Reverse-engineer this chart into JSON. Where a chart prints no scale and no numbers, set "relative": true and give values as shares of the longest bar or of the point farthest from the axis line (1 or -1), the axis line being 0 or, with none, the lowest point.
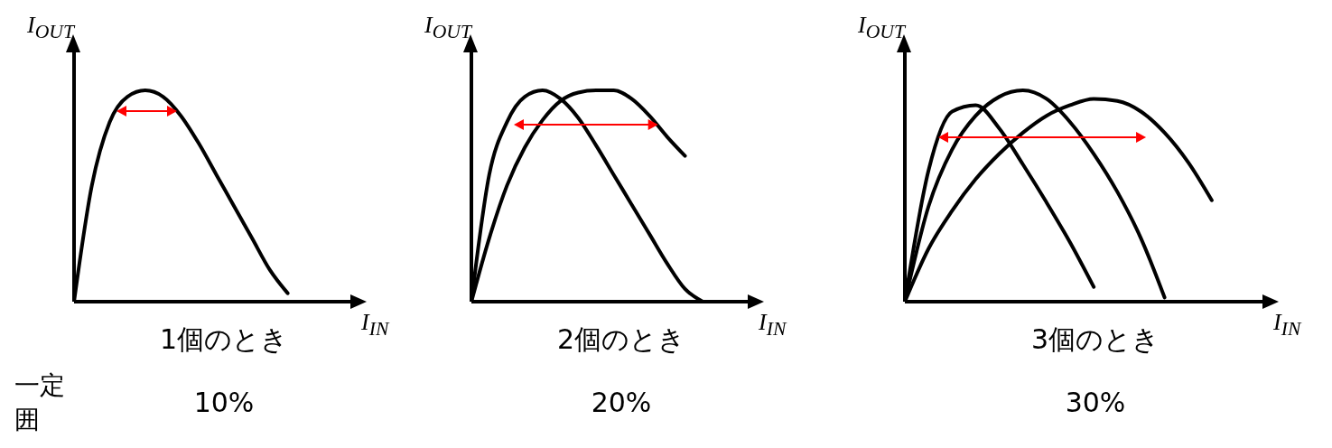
{
  "chart_data": [
    {
      "type": "line",
      "relative": true,
      "marker": "none",
      "line_style": "solid",
      "xlabel": "I$_{IN}$",
      "ylabel": "I$_{OUT}$",
      "subtitle": "1個のとき",
      "annotations": [
        "10%",
        "一定",
        "囲"
      ],
      "categories": [
        null,
        null,
        null,
        null,
        null,
        null,
        null,
        null,
        null,
        null,
        null,
        null,
        null,
        null,
        null
      ],
      "series": [
        {
          "color": "#000000",
          "values": [
            0,
            0.55,
            0.85,
            0.97,
            1.0,
            0.97,
            0.88,
            0.75,
            0.6,
            0.45,
            0.3,
            0.15,
            0.04,
            null,
            null
          ]
        }
      ]
    },
    {
      "type": "line",
      "relative": true,
      "marker": "none",
      "line_style": "solid",
      "xlabel": "I$_{IN}$",
      "ylabel": "I$_{OUT}$",
      "subtitle": "2個のとき",
      "annotations": [
        "20%"
      ],
      "categories": [
        null,
        null,
        null,
        null,
        null,
        null,
        null,
        null,
        null,
        null,
        null,
        null,
        null,
        null,
        null
      ],
      "series": [
        {
          "color": "#000000",
          "values": [
            0,
            0.6,
            0.85,
            0.97,
            1.0,
            0.96,
            0.87,
            0.74,
            0.6,
            0.46,
            0.32,
            0.18,
            0.06,
            0,
            null
          ]
        },
        {
          "color": "#000000",
          "values": [
            0,
            0.3,
            0.55,
            0.73,
            0.86,
            0.95,
            0.99,
            1.0,
            1.0,
            0.96,
            0.88,
            0.78,
            0.69,
            null,
            null
          ]
        }
      ]
    },
    {
      "type": "line",
      "relative": true,
      "marker": "none",
      "line_style": "solid",
      "xlabel": "I$_{IN}$",
      "ylabel": "I$_{OUT}$",
      "subtitle": "3個のとき",
      "annotations": [
        "30%"
      ],
      "categories": [
        null,
        null,
        null,
        null,
        null,
        null,
        null,
        null,
        null,
        null,
        null,
        null,
        null,
        null,
        null
      ],
      "series": [
        {
          "color": "#000000",
          "values": [
            0,
            0.62,
            0.9,
            0.93,
            0.82,
            0.65,
            0.47,
            0.28,
            0.07,
            null,
            null,
            null,
            null,
            null,
            null
          ]
        },
        {
          "color": "#000000",
          "values": [
            0,
            0.45,
            0.72,
            0.88,
            0.97,
            1.0,
            0.96,
            0.85,
            0.7,
            0.52,
            0.3,
            0.02,
            null,
            null,
            null
          ]
        },
        {
          "color": "#000000",
          "values": [
            0,
            0.25,
            0.43,
            0.58,
            0.7,
            0.8,
            0.88,
            0.93,
            0.96,
            0.95,
            0.9,
            0.8,
            0.66,
            0.48,
            null
          ]
        }
      ]
    }
  ]
}
